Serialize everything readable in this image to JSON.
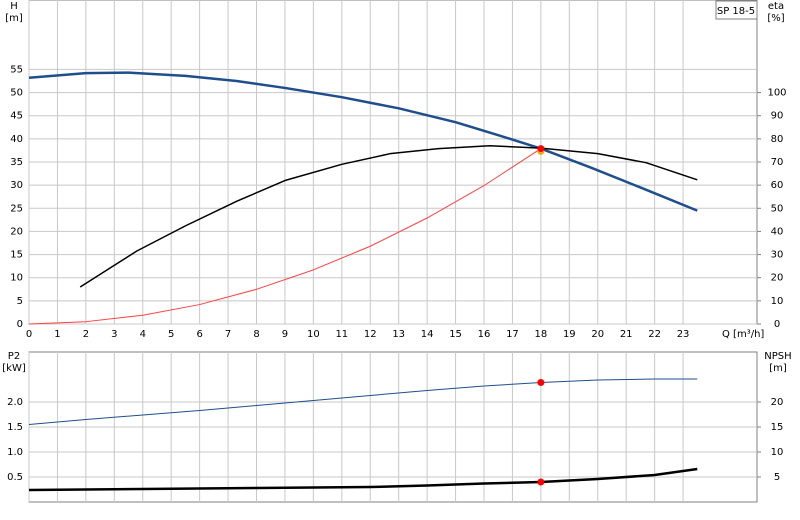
{
  "chart_data": [
    {
      "type": "line",
      "y_label": [
        "H",
        "[m]"
      ],
      "y2_label": [
        "eta",
        "[%]"
      ],
      "x_label": "Q [m³/h]",
      "badge": "SP 18-5",
      "xlim": [
        0,
        25.6
      ],
      "xticks": [
        0,
        1,
        2,
        3,
        4,
        5,
        6,
        7,
        8,
        9,
        10,
        11,
        12,
        13,
        14,
        15,
        16,
        17,
        18,
        19,
        20,
        21,
        22,
        23
      ],
      "ylim": [
        0,
        70
      ],
      "yticks": [
        0,
        5,
        10,
        15,
        20,
        25,
        30,
        35,
        40,
        45,
        50,
        55
      ],
      "y2lim": [
        0,
        140
      ],
      "y2ticks": [
        0,
        10,
        20,
        30,
        40,
        50,
        60,
        70,
        80,
        90,
        100
      ],
      "grid": true,
      "series": [
        {
          "color": "#1f4e8c",
          "width": 2.5,
          "axis": "y",
          "x": [
            0,
            2,
            3.5,
            5.5,
            7.3,
            9,
            11,
            13,
            15,
            16.5,
            18,
            19.8,
            21.5,
            23.5
          ],
          "values": [
            53.2,
            54.2,
            54.3,
            53.6,
            52.5,
            51,
            49,
            46.6,
            43.6,
            40.8,
            37.9,
            33.7,
            29.5,
            24.5
          ]
        },
        {
          "color": "#000000",
          "width": 1.5,
          "axis": "y2",
          "x": [
            1.8,
            3.8,
            5.5,
            7.3,
            9,
            11,
            12.7,
            14.4,
            16.2,
            18,
            20,
            21.7,
            23.5
          ],
          "values": [
            16,
            31.6,
            42.4,
            53,
            62,
            69,
            73.6,
            75.8,
            77,
            76,
            73.6,
            69.7,
            62.3
          ]
        },
        {
          "color": "#ff4040",
          "width": 1,
          "axis": "y",
          "x": [
            0,
            2,
            4,
            6,
            8,
            10,
            12,
            14,
            16,
            18
          ],
          "values": [
            0,
            0.5,
            1.9,
            4.2,
            7.5,
            11.7,
            16.8,
            22.9,
            29.9,
            37.9
          ]
        }
      ],
      "points": [
        {
          "x": 18,
          "y": 37.3,
          "color": "#ffa500",
          "axis": "y"
        },
        {
          "x": 18,
          "y": 37.9,
          "color": "#ff0000",
          "axis": "y"
        }
      ]
    },
    {
      "type": "line",
      "y_label": [
        "P2",
        "[kW]"
      ],
      "y2_label": [
        "NPSH",
        "[m]"
      ],
      "xlim": [
        0,
        25.6
      ],
      "ylim": [
        0,
        3
      ],
      "yticks": [
        {
          "value": 0.5,
          "label": "0.5"
        },
        {
          "value": 1,
          "label": "1.0"
        },
        {
          "value": 1.5,
          "label": "1.5"
        },
        {
          "value": 2,
          "label": "2.0"
        }
      ],
      "y2lim": [
        0,
        30
      ],
      "y2ticks": [
        5,
        10,
        15,
        20
      ],
      "grid": true,
      "series": [
        {
          "color": "#1f4e8c",
          "width": 1,
          "axis": "y",
          "x": [
            0,
            2,
            4,
            6,
            8,
            10,
            12,
            14,
            16,
            18,
            20,
            22,
            23.5
          ],
          "values": [
            1.55,
            1.65,
            1.74,
            1.83,
            1.93,
            2.03,
            2.13,
            2.23,
            2.32,
            2.39,
            2.44,
            2.46,
            2.46
          ]
        },
        {
          "color": "#000000",
          "width": 2.5,
          "axis": "y2",
          "x": [
            0,
            4,
            8,
            12,
            14,
            16,
            18,
            20,
            22,
            23.5
          ],
          "values": [
            2.4,
            2.6,
            2.8,
            3.0,
            3.3,
            3.7,
            4.0,
            4.6,
            5.4,
            6.6
          ]
        }
      ],
      "points": [
        {
          "x": 18,
          "y": 2.39,
          "color": "#ff0000",
          "axis": "y"
        },
        {
          "x": 18,
          "y": 4.0,
          "color": "#ff0000",
          "axis": "y2"
        }
      ]
    }
  ]
}
